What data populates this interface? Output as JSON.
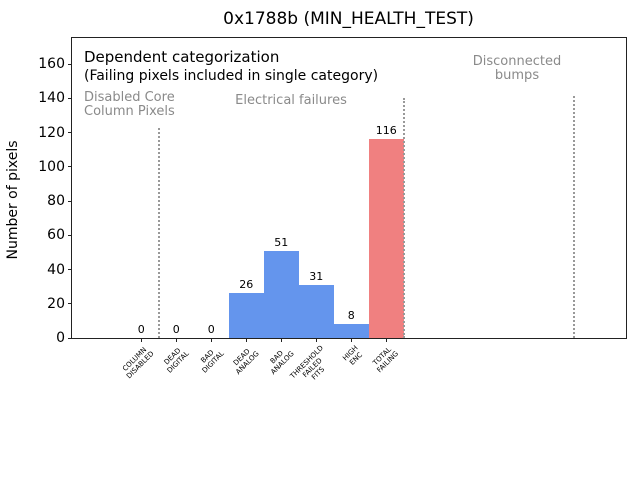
{
  "figure": {
    "title": "0x1788b (MIN_HEALTH_TEST)",
    "ylabel": "Number of pixels"
  },
  "chart_data": {
    "type": "bar",
    "title": "0x1788b (MIN_HEALTH_TEST)",
    "xlabel": "",
    "ylabel": "Number of pixels",
    "ylim": [
      0,
      175
    ],
    "yticks": [
      0,
      20,
      40,
      60,
      80,
      100,
      120,
      140,
      160
    ],
    "grid": false,
    "legend_position": "none",
    "categories": [
      "COLUMN\nDISABLED",
      "DEAD\nDIGITAL",
      "BAD\nDIGITAL",
      "DEAD\nANALOG",
      "BAD\nANALOG",
      "THRESHOLD\nFAILED\nFITS",
      "HIGH\nENC",
      "TOTAL\nFAILING"
    ],
    "values": [
      0,
      0,
      0,
      26,
      51,
      31,
      8,
      116
    ],
    "bar_labels": [
      "0",
      "0",
      "0",
      "26",
      "51",
      "31",
      "8",
      "116"
    ],
    "bar_colors": [
      "#6495ed",
      "#6495ed",
      "#6495ed",
      "#6495ed",
      "#6495ed",
      "#6495ed",
      "#6495ed",
      "#f08080"
    ],
    "accent_blue": "#6495ed",
    "accent_red": "#f08080",
    "annotation_gray": "#8a8a8a",
    "annotations": [
      {
        "name": "dependent-categorization",
        "text": "Dependent categorization",
        "color": "#000000",
        "size": 15,
        "x": 12,
        "y": 11,
        "align": "left"
      },
      {
        "name": "single-category-note",
        "text": "(Failing pixels included in single category)",
        "color": "#000000",
        "size": 14,
        "x": 12,
        "y": 31,
        "align": "left"
      },
      {
        "name": "disabled-core-column-pixels",
        "text": "Disabled Core\nColumn Pixels",
        "color": "#8a8a8a",
        "size": 13,
        "x": 12,
        "y": 53,
        "align": "left"
      },
      {
        "name": "electrical-failures",
        "text": "Electrical failures",
        "color": "#8a8a8a",
        "size": 13,
        "x": 219,
        "y": 56,
        "align": "center"
      },
      {
        "name": "disconnected-bumps",
        "text": "Disconnected\nbumps",
        "color": "#8a8a8a",
        "size": 13,
        "x": 445,
        "y": 17,
        "align": "center"
      }
    ],
    "separators": [
      {
        "x_index": 0.5,
        "top": 90
      },
      {
        "x_index": 7.5,
        "top": 60
      },
      {
        "x_index": 12.35,
        "top": 58
      }
    ]
  }
}
